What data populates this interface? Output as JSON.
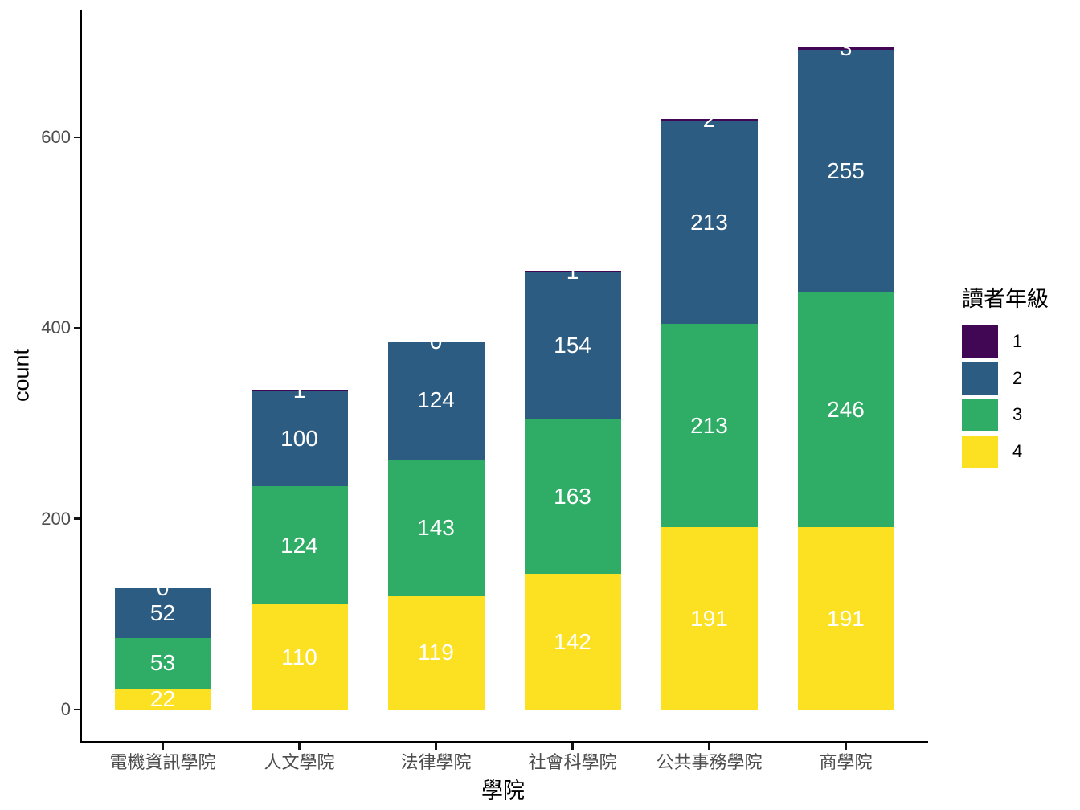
{
  "figure": {
    "xlabel": "學院",
    "ylabel": "count",
    "legend_title": "讀者年級"
  },
  "chart_data": {
    "type": "bar",
    "stacked": true,
    "orientation": "vertical",
    "title": "",
    "xlabel": "學院",
    "ylabel": "count",
    "categories": [
      "電機資訊學院",
      "人文學院",
      "法律學院",
      "社會科學院",
      "公共事務學院",
      "商學院"
    ],
    "series_stack_order": "top-to-bottom",
    "series": [
      {
        "name": "1",
        "color": "#420754",
        "values": [
          0,
          1,
          0,
          1,
          2,
          3
        ]
      },
      {
        "name": "2",
        "color": "#2d5c82",
        "values": [
          52,
          100,
          124,
          154,
          213,
          255
        ]
      },
      {
        "name": "3",
        "color": "#2fac66",
        "values": [
          53,
          124,
          143,
          163,
          213,
          246
        ]
      },
      {
        "name": "4",
        "color": "#fce123",
        "values": [
          22,
          110,
          119,
          142,
          191,
          191
        ]
      }
    ],
    "totals": [
      127,
      335,
      386,
      460,
      619,
      695
    ],
    "bar_value_labels": true,
    "value_label_color": "#ffffff",
    "yticks": [
      0,
      200,
      400,
      600
    ],
    "ylim": [
      0,
      729
    ],
    "grid": false,
    "background": "#ffffff",
    "axis_text_color": "#4d4d4d",
    "axis_line_color": "#000000",
    "legend": {
      "title": "讀者年級",
      "position": "right",
      "items": [
        {
          "label": "1",
          "color": "#420754"
        },
        {
          "label": "2",
          "color": "#2d5c82"
        },
        {
          "label": "3",
          "color": "#2fac66"
        },
        {
          "label": "4",
          "color": "#fce123"
        }
      ]
    }
  }
}
